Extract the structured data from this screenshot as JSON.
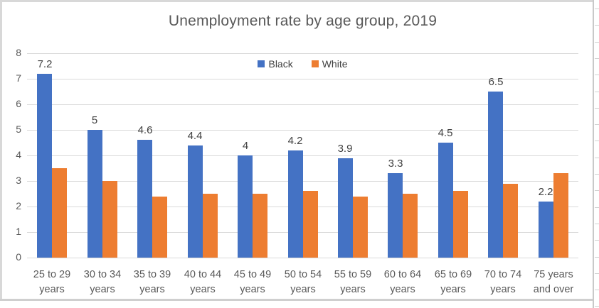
{
  "title": "Unemployment rate by age group, 2019",
  "chart_data": {
    "type": "bar",
    "title": "Unemployment rate by age group, 2019",
    "categories": [
      "25 to 29 years",
      "30 to 34 years",
      "35 to 39 years",
      "40 to 44 years",
      "45 to 49 years",
      "50 to 54 years",
      "55 to 59 years",
      "60 to 64 years",
      "65 to 69 years",
      "70 to 74 years",
      "75 years and over"
    ],
    "category_lines": [
      [
        "25 to 29",
        "years"
      ],
      [
        "30 to 34",
        "years"
      ],
      [
        "35 to 39",
        "years"
      ],
      [
        "40 to 44",
        "years"
      ],
      [
        "45 to 49",
        "years"
      ],
      [
        "50 to 54",
        "years"
      ],
      [
        "55 to 59",
        "years"
      ],
      [
        "60 to 64",
        "years"
      ],
      [
        "65 to 69",
        "years"
      ],
      [
        "70 to 74",
        "years"
      ],
      [
        "75 years",
        "and over"
      ]
    ],
    "series": [
      {
        "name": "Black",
        "color": "#4472C4",
        "values": [
          7.2,
          5,
          4.6,
          4.4,
          4,
          4.2,
          3.9,
          3.3,
          4.5,
          6.5,
          2.2
        ],
        "data_labels": [
          "7.2",
          "5",
          "4.6",
          "4.4",
          "4",
          "4.2",
          "3.9",
          "3.3",
          "4.5",
          "6.5",
          "2.2"
        ],
        "data_labels_shown": true
      },
      {
        "name": "White",
        "color": "#ED7D31",
        "values": [
          3.5,
          3,
          2.4,
          2.5,
          2.5,
          2.6,
          2.4,
          2.5,
          2.6,
          2.9,
          3.3
        ],
        "data_labels": [],
        "data_labels_shown": false
      }
    ],
    "xlabel": "",
    "ylabel": "",
    "ylim": [
      0,
      8
    ],
    "ytick_labels": [
      "0",
      "1",
      "2",
      "3",
      "4",
      "5",
      "6",
      "7",
      "8"
    ],
    "grid": true,
    "legend_position": "top-center"
  },
  "colors": {
    "series_black": "#4472C4",
    "series_white": "#ED7D31",
    "gridline": "#D9D9D9",
    "title_text": "#595959",
    "axis_text": "#595959",
    "data_label_text": "#404040",
    "chart_border": "#CFCFCF"
  }
}
